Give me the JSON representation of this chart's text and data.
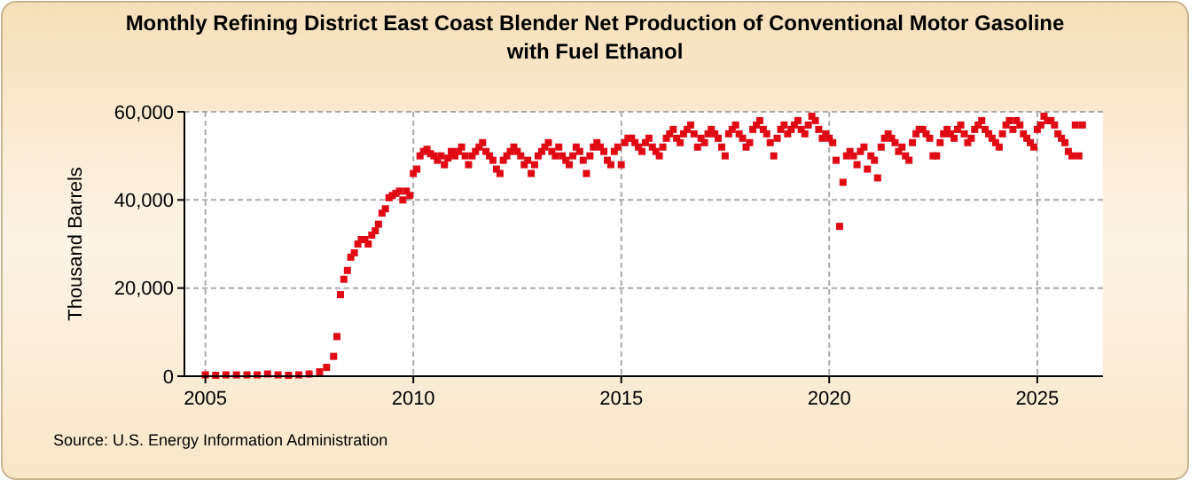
{
  "chart_data": {
    "type": "scatter",
    "title": "Monthly Refining District East Coast Blender Net Production of Conventional Motor Gasoline with Fuel Ethanol",
    "ylabel": "Thousand Barrels",
    "annotations": [
      "Source: U.S. Energy Information Administration"
    ],
    "color": "#e00a14",
    "marker": "square",
    "grid": true,
    "xlim": [
      "2004-07",
      "2026-08"
    ],
    "xticks": [
      "2005",
      "2010",
      "2015",
      "2020",
      "2025"
    ],
    "ylim": [
      0,
      60000
    ],
    "yticks": [
      {
        "value": 0,
        "label": "0"
      },
      {
        "value": 20000,
        "label": "20,000"
      },
      {
        "value": 40000,
        "label": "40,000"
      },
      {
        "value": 60000,
        "label": "60,000"
      }
    ],
    "x": [
      "2005-01",
      "2005-04",
      "2005-07",
      "2005-10",
      "2006-01",
      "2006-04",
      "2006-07",
      "2006-10",
      "2007-01",
      "2007-04",
      "2007-07",
      "2007-10",
      "2007-12",
      "2008-02",
      "2008-03",
      "2008-04",
      "2008-05",
      "2008-06",
      "2008-07",
      "2008-08",
      "2008-09",
      "2008-10",
      "2008-11",
      "2008-12",
      "2009-01",
      "2009-02",
      "2009-03",
      "2009-04",
      "2009-05",
      "2009-06",
      "2009-07",
      "2009-08",
      "2009-09",
      "2009-10",
      "2009-11",
      "2009-12",
      "2010-01",
      "2010-02",
      "2010-03",
      "2010-04",
      "2010-05",
      "2010-06",
      "2010-07",
      "2010-08",
      "2010-09",
      "2010-10",
      "2010-11",
      "2010-12",
      "2011-01",
      "2011-02",
      "2011-03",
      "2011-04",
      "2011-05",
      "2011-06",
      "2011-07",
      "2011-08",
      "2011-09",
      "2011-10",
      "2011-11",
      "2011-12",
      "2012-01",
      "2012-02",
      "2012-03",
      "2012-04",
      "2012-05",
      "2012-06",
      "2012-07",
      "2012-08",
      "2012-09",
      "2012-10",
      "2012-11",
      "2012-12",
      "2013-01",
      "2013-02",
      "2013-03",
      "2013-04",
      "2013-05",
      "2013-06",
      "2013-07",
      "2013-08",
      "2013-09",
      "2013-10",
      "2013-11",
      "2013-12",
      "2014-01",
      "2014-02",
      "2014-03",
      "2014-04",
      "2014-05",
      "2014-06",
      "2014-07",
      "2014-08",
      "2014-09",
      "2014-10",
      "2014-11",
      "2014-12",
      "2015-01",
      "2015-02",
      "2015-03",
      "2015-04",
      "2015-05",
      "2015-06",
      "2015-07",
      "2015-08",
      "2015-09",
      "2015-10",
      "2015-11",
      "2015-12",
      "2016-01",
      "2016-02",
      "2016-03",
      "2016-04",
      "2016-05",
      "2016-06",
      "2016-07",
      "2016-08",
      "2016-09",
      "2016-10",
      "2016-11",
      "2016-12",
      "2017-01",
      "2017-02",
      "2017-03",
      "2017-04",
      "2017-05",
      "2017-06",
      "2017-07",
      "2017-08",
      "2017-09",
      "2017-10",
      "2017-11",
      "2017-12",
      "2018-01",
      "2018-02",
      "2018-03",
      "2018-04",
      "2018-05",
      "2018-06",
      "2018-07",
      "2018-08",
      "2018-09",
      "2018-10",
      "2018-11",
      "2018-12",
      "2019-01",
      "2019-02",
      "2019-03",
      "2019-04",
      "2019-05",
      "2019-06",
      "2019-07",
      "2019-08",
      "2019-09",
      "2019-10",
      "2019-11",
      "2019-12",
      "2020-01",
      "2020-02",
      "2020-03",
      "2020-04",
      "2020-05",
      "2020-06",
      "2020-07",
      "2020-08",
      "2020-09",
      "2020-10",
      "2020-11",
      "2020-12",
      "2021-01",
      "2021-02",
      "2021-03",
      "2021-04",
      "2021-05",
      "2021-06",
      "2021-07",
      "2021-08",
      "2021-09",
      "2021-10",
      "2021-11",
      "2021-12",
      "2022-01",
      "2022-02",
      "2022-03",
      "2022-04",
      "2022-05",
      "2022-06",
      "2022-07",
      "2022-08",
      "2022-09",
      "2022-10",
      "2022-11",
      "2022-12",
      "2023-01",
      "2023-02",
      "2023-03",
      "2023-04",
      "2023-05",
      "2023-06",
      "2023-07",
      "2023-08",
      "2023-09",
      "2023-10",
      "2023-11",
      "2023-12",
      "2024-01",
      "2024-02",
      "2024-03",
      "2024-04",
      "2024-05",
      "2024-06",
      "2024-07",
      "2024-08",
      "2024-09",
      "2024-10",
      "2024-11",
      "2024-12",
      "2025-01",
      "2025-02",
      "2025-03",
      "2025-04",
      "2025-05",
      "2025-06",
      "2025-07",
      "2025-08",
      "2025-09",
      "2025-10",
      "2025-11",
      "2025-12",
      "2026-01",
      "2026-02"
    ],
    "values": [
      300,
      200,
      300,
      300,
      300,
      300,
      500,
      300,
      200,
      300,
      500,
      1000,
      2000,
      4500,
      9000,
      18500,
      22000,
      24000,
      27000,
      28000,
      30000,
      31000,
      31000,
      30000,
      32000,
      33000,
      34500,
      37000,
      38000,
      40500,
      41000,
      41500,
      42000,
      40000,
      42000,
      41000,
      46000,
      47000,
      50000,
      51000,
      51500,
      50500,
      50000,
      49000,
      50000,
      48000,
      49500,
      51000,
      50000,
      51000,
      52000,
      50000,
      48000,
      50000,
      51000,
      52000,
      53000,
      51000,
      50000,
      49000,
      47000,
      46000,
      49000,
      50000,
      51000,
      52000,
      51000,
      50000,
      48000,
      49000,
      46000,
      48000,
      50000,
      51000,
      52000,
      53000,
      51000,
      50000,
      52000,
      50000,
      49000,
      48000,
      50000,
      52000,
      51000,
      49000,
      46000,
      50000,
      52000,
      53000,
      52000,
      51000,
      49000,
      48000,
      51000,
      52000,
      48000,
      53000,
      54000,
      54000,
      53000,
      52000,
      51000,
      53000,
      54000,
      52000,
      51000,
      50000,
      52000,
      54000,
      55000,
      56000,
      54000,
      53000,
      55000,
      56000,
      57000,
      55000,
      52000,
      54000,
      53000,
      55000,
      56000,
      55000,
      54000,
      52000,
      50000,
      55000,
      56000,
      57000,
      55000,
      54000,
      52000,
      53000,
      56000,
      57000,
      58000,
      56000,
      55000,
      53000,
      50000,
      54000,
      56000,
      57000,
      55000,
      56000,
      57000,
      58000,
      56000,
      55000,
      57000,
      59000,
      58000,
      56000,
      54000,
      55000,
      54000,
      53000,
      49000,
      34000,
      44000,
      50000,
      51000,
      50000,
      48000,
      51000,
      52000,
      47000,
      50000,
      49000,
      45000,
      52000,
      54000,
      55000,
      54000,
      53000,
      51000,
      52000,
      50000,
      49000,
      53000,
      55000,
      56000,
      56000,
      55000,
      54000,
      50000,
      50000,
      53000,
      55000,
      56000,
      55000,
      54000,
      56000,
      57000,
      55000,
      53000,
      54000,
      56000,
      57000,
      58000,
      56000,
      55000,
      54000,
      53000,
      52000,
      55000,
      57000,
      58000,
      56000,
      58000,
      57000,
      55000,
      54000,
      53000,
      52000,
      56000,
      57000,
      59000,
      58000,
      58000,
      57000,
      55000,
      54000,
      53000,
      51000,
      50000,
      57000,
      50000,
      57000
    ]
  }
}
